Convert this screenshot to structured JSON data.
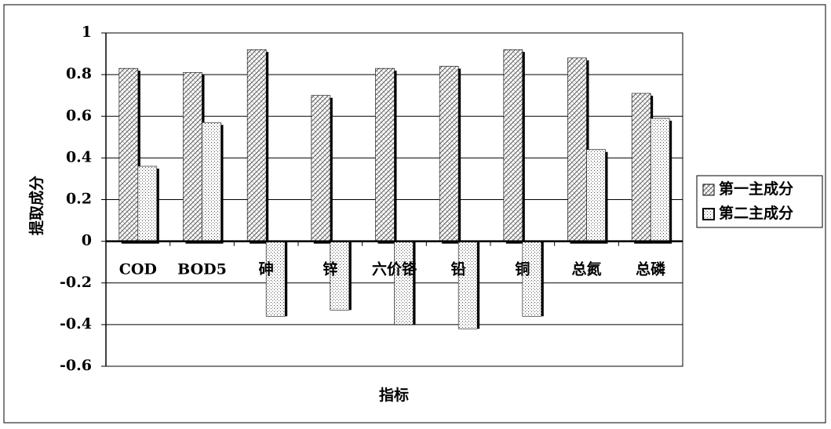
{
  "chart_data": {
    "type": "bar",
    "y_label": "提取成分",
    "x_label": "指标",
    "categories": [
      "COD",
      "BOD5",
      "砷",
      "锌",
      "六价铬",
      "铅",
      "铜",
      "总氮",
      "总磷"
    ],
    "series": [
      {
        "name": "第一主成分",
        "pattern": "crosshatch",
        "values": [
          0.83,
          0.81,
          0.92,
          0.7,
          0.83,
          0.84,
          0.92,
          0.88,
          0.71
        ]
      },
      {
        "name": "第二主成分",
        "pattern": "dots",
        "values": [
          0.36,
          0.57,
          -0.36,
          -0.33,
          -0.4,
          -0.42,
          -0.36,
          0.44,
          0.59
        ]
      }
    ],
    "ylim": [
      -0.6,
      1
    ],
    "yticks": [
      -0.6,
      -0.4,
      -0.2,
      0,
      0.2,
      0.4,
      0.6,
      0.8,
      1
    ],
    "grid": true,
    "legend": "right"
  }
}
